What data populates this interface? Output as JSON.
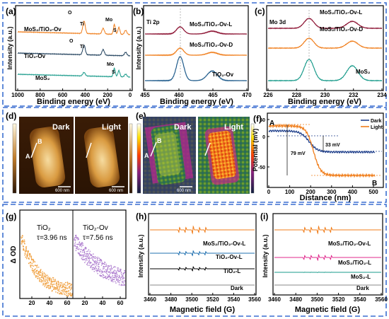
{
  "figure": {
    "frame_color": "#3b6fd0",
    "panels": {
      "a": {
        "letter": "(a)",
        "ylabel": "Intensity (a.u.)",
        "xlabel": "Binding energy (eV)",
        "xticks": [
          "1000",
          "800",
          "600",
          "400",
          "200",
          "0"
        ],
        "series_labels": [
          "MoS₂/TiO₂-Ov",
          "TiO₂-Ov",
          "MoS₂"
        ],
        "peak_labels": [
          "O",
          "Ti",
          "Mo",
          "S",
          "O",
          "Ti",
          "Mo",
          "S"
        ],
        "colors": [
          "#f07d1a",
          "#1f3f5b",
          "#1a9b8b"
        ]
      },
      "b": {
        "letter": "(b)",
        "title": "Ti 2p",
        "ylabel": "Intensity (a.u.)",
        "xlabel": "Binding energy (eV)",
        "xticks": [
          "455",
          "460",
          "465",
          "470"
        ],
        "series_labels": [
          "MoS₂/TiO₂-Ov-L",
          "MoS₂/TiO₂-Ov-D",
          "TiO₂-Ov"
        ],
        "colors": [
          "#8b1030",
          "#f07d1a",
          "#1f5b8b"
        ]
      },
      "c": {
        "letter": "(c)",
        "title": "Mo 3d",
        "xlabel": "Binding energy (eV)",
        "xticks": [
          "226",
          "228",
          "230",
          "232",
          "234"
        ],
        "series_labels": [
          "MoS₂/TiO₂-Ov-L",
          "MoS₂/TiO₂-Ov-D",
          "MoS₂"
        ],
        "colors": [
          "#8b1030",
          "#f07d1a",
          "#1a9b8b"
        ]
      },
      "d": {
        "letter": "(d)",
        "dark_label": "Dark",
        "light_label": "Light",
        "scale_bar": "600 nm",
        "point_a": "A",
        "point_b": "B"
      },
      "e": {
        "letter": "(e)",
        "dark_label": "Dark",
        "light_label": "Light",
        "scale_bar": "600 nm",
        "point_a": "A",
        "point_b": "B"
      },
      "f": {
        "letter": "(f)",
        "ylabel": "Potential (mV)",
        "xlabel": "Distance (nm)",
        "xticks": [
          "0",
          "100",
          "200",
          "300",
          "400",
          "500"
        ],
        "yticks": [
          "50",
          "0",
          "-50"
        ],
        "legend": [
          "Dark",
          "Light"
        ],
        "annotations": [
          "79 mV",
          "33 mV"
        ],
        "point_a": "A",
        "point_b": "B",
        "colors": [
          "#1f3f8b",
          "#f07d1a"
        ]
      },
      "g": {
        "letter": "(g)",
        "ylabel": "Δ OD",
        "xticks": [
          "20",
          "40",
          "60",
          "20",
          "40",
          "60"
        ],
        "label1": "TiO₂",
        "tau1": "τ=3.96 ns",
        "label2": "TiO₂-Ov",
        "tau2": "τ=7.56 ns",
        "colors": [
          "#f0a040",
          "#b080d0"
        ]
      },
      "h": {
        "letter": "(h)",
        "ylabel": "Intensity (a.u.)",
        "xlabel": "Magnetic field (G)",
        "xticks": [
          "3460",
          "3480",
          "3500",
          "3520",
          "3540",
          "3560"
        ],
        "series_labels": [
          "MoS₂/TiO₂-Ov-L",
          "TiO₂-Ov-L",
          "TiO₂-L",
          "Dark"
        ],
        "colors": [
          "#f07d1a",
          "#2070b0",
          "#000000",
          "#888888"
        ]
      },
      "i": {
        "letter": "(i)",
        "ylabel": "Intensity (a.u.)",
        "xlabel": "Magnetic field (G)",
        "xticks": [
          "3460",
          "3480",
          "3500",
          "3520",
          "3540",
          "3560"
        ],
        "series_labels": [
          "MoS₂/TiO₂-Ov-L",
          "MoS₂/TiO₂-L",
          "MoS₂-L",
          "Dark"
        ],
        "colors": [
          "#f07d1a",
          "#e0288c",
          "#1a9b8b",
          "#888888"
        ]
      }
    }
  }
}
